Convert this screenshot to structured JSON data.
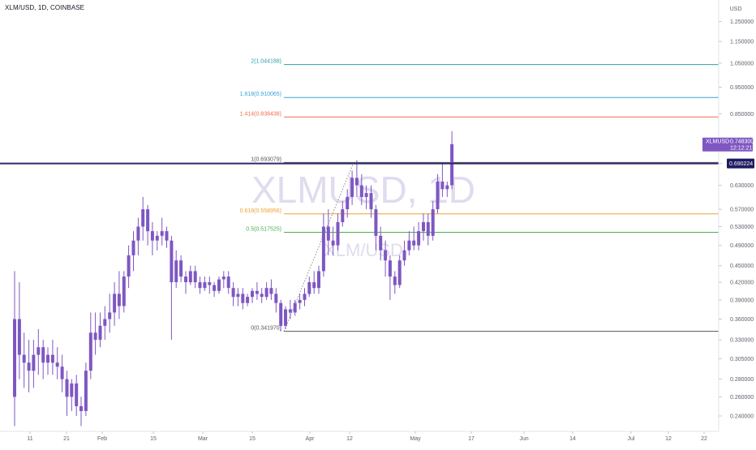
{
  "header": {
    "symbol_title": "XLM/USD, 1D, COINBASE"
  },
  "watermark": {
    "main": "XLMUSD, 1D",
    "sub": "XLM/USD"
  },
  "axis": {
    "currency": "USD"
  },
  "colors": {
    "candle": "#7e57c2",
    "last_price_line": "#2c2a6b",
    "last_price_badge": "#1e1b60",
    "price_tag": "#7e57c2",
    "axis_text": "#5d606b"
  },
  "current_price": {
    "symbol": "XLMUSD",
    "value": "0.748300",
    "countdown": "12:12:21"
  },
  "crosshair_price": {
    "value": "0.690224"
  },
  "chart_data": {
    "type": "candlestick",
    "title": "XLM/USD, 1D, COINBASE",
    "y_axis": {
      "label": "USD",
      "ticks": [
        "0.240000",
        "0.260000",
        "0.280000",
        "0.305000",
        "0.330000",
        "0.360000",
        "0.390000",
        "0.420000",
        "0.450000",
        "0.490000",
        "0.530000",
        "0.570000",
        "0.630000",
        "0.690000",
        "0.760000",
        "0.850000",
        "0.950000",
        "1.050000",
        "1.150000",
        "1.250000",
        "1.350000"
      ],
      "range": [
        0.228,
        1.42
      ],
      "scale": "log"
    },
    "x_axis": {
      "ticks": [
        "11",
        "21",
        "Feb",
        "15",
        "Mar",
        "15",
        "Apr",
        "12",
        "May",
        "17",
        "Jun",
        "14",
        "Jul",
        "12",
        "22"
      ]
    },
    "fib_levels": [
      {
        "ratio": "2",
        "price": 1.044188,
        "label": "2(1.044188)",
        "color": "#2f9fa6"
      },
      {
        "ratio": "1.618",
        "price": 0.910065,
        "label": "1.618(0.910065)",
        "color": "#3aa0d8"
      },
      {
        "ratio": "1.414",
        "price": 0.838438,
        "label": "1.414(0.838438)",
        "color": "#ef6c4c"
      },
      {
        "ratio": "1",
        "price": 0.693079,
        "label": "1(0.693079)",
        "color": "#555555"
      },
      {
        "ratio": "0.618",
        "price": 0.558956,
        "label": "0.618(0.558956)",
        "color": "#f0a030"
      },
      {
        "ratio": "0.5",
        "price": 0.517525,
        "label": "0.5(0.517525)",
        "color": "#4caf50"
      },
      {
        "ratio": "0",
        "price": 0.34197,
        "label": "0(0.341970)",
        "color": "#555555"
      }
    ],
    "candles": [
      {
        "o": 0.26,
        "h": 0.44,
        "c": 0.36,
        "l": 0.23
      },
      {
        "o": 0.36,
        "h": 0.42,
        "c": 0.31,
        "l": 0.28
      },
      {
        "o": 0.31,
        "h": 0.34,
        "c": 0.3,
        "l": 0.27
      },
      {
        "o": 0.3,
        "h": 0.33,
        "c": 0.29,
        "l": 0.265
      },
      {
        "o": 0.29,
        "h": 0.33,
        "c": 0.31,
        "l": 0.27
      },
      {
        "o": 0.31,
        "h": 0.345,
        "c": 0.32,
        "l": 0.285
      },
      {
        "o": 0.32,
        "h": 0.33,
        "c": 0.3,
        "l": 0.28
      },
      {
        "o": 0.3,
        "h": 0.32,
        "c": 0.31,
        "l": 0.285
      },
      {
        "o": 0.31,
        "h": 0.33,
        "c": 0.3,
        "l": 0.285
      },
      {
        "o": 0.3,
        "h": 0.32,
        "c": 0.295,
        "l": 0.28
      },
      {
        "o": 0.295,
        "h": 0.31,
        "c": 0.28,
        "l": 0.265
      },
      {
        "o": 0.28,
        "h": 0.29,
        "c": 0.26,
        "l": 0.24
      },
      {
        "o": 0.26,
        "h": 0.28,
        "c": 0.275,
        "l": 0.245
      },
      {
        "o": 0.275,
        "h": 0.285,
        "c": 0.25,
        "l": 0.24
      },
      {
        "o": 0.25,
        "h": 0.26,
        "c": 0.245,
        "l": 0.23
      },
      {
        "o": 0.245,
        "h": 0.3,
        "c": 0.29,
        "l": 0.24
      },
      {
        "o": 0.29,
        "h": 0.37,
        "c": 0.34,
        "l": 0.28
      },
      {
        "o": 0.34,
        "h": 0.37,
        "c": 0.33,
        "l": 0.31
      },
      {
        "o": 0.33,
        "h": 0.37,
        "c": 0.35,
        "l": 0.32
      },
      {
        "o": 0.35,
        "h": 0.38,
        "c": 0.36,
        "l": 0.33
      },
      {
        "o": 0.36,
        "h": 0.4,
        "c": 0.37,
        "l": 0.34
      },
      {
        "o": 0.37,
        "h": 0.42,
        "c": 0.4,
        "l": 0.35
      },
      {
        "o": 0.4,
        "h": 0.44,
        "c": 0.38,
        "l": 0.36
      },
      {
        "o": 0.38,
        "h": 0.44,
        "c": 0.43,
        "l": 0.37
      },
      {
        "o": 0.43,
        "h": 0.49,
        "c": 0.47,
        "l": 0.41
      },
      {
        "o": 0.47,
        "h": 0.52,
        "c": 0.5,
        "l": 0.44
      },
      {
        "o": 0.5,
        "h": 0.55,
        "c": 0.53,
        "l": 0.47
      },
      {
        "o": 0.53,
        "h": 0.6,
        "c": 0.57,
        "l": 0.5
      },
      {
        "o": 0.57,
        "h": 0.58,
        "c": 0.52,
        "l": 0.49
      },
      {
        "o": 0.52,
        "h": 0.54,
        "c": 0.5,
        "l": 0.47
      },
      {
        "o": 0.5,
        "h": 0.52,
        "c": 0.51,
        "l": 0.48
      },
      {
        "o": 0.51,
        "h": 0.55,
        "c": 0.52,
        "l": 0.49
      },
      {
        "o": 0.52,
        "h": 0.53,
        "c": 0.5,
        "l": 0.485
      },
      {
        "o": 0.5,
        "h": 0.51,
        "c": 0.42,
        "l": 0.33
      },
      {
        "o": 0.42,
        "h": 0.48,
        "c": 0.46,
        "l": 0.41
      },
      {
        "o": 0.46,
        "h": 0.47,
        "c": 0.43,
        "l": 0.42
      },
      {
        "o": 0.43,
        "h": 0.44,
        "c": 0.42,
        "l": 0.4
      },
      {
        "o": 0.42,
        "h": 0.45,
        "c": 0.44,
        "l": 0.415
      },
      {
        "o": 0.44,
        "h": 0.45,
        "c": 0.42,
        "l": 0.41
      },
      {
        "o": 0.42,
        "h": 0.43,
        "c": 0.41,
        "l": 0.4
      },
      {
        "o": 0.41,
        "h": 0.43,
        "c": 0.42,
        "l": 0.405
      },
      {
        "o": 0.42,
        "h": 0.43,
        "c": 0.415,
        "l": 0.4
      },
      {
        "o": 0.415,
        "h": 0.42,
        "c": 0.405,
        "l": 0.395
      },
      {
        "o": 0.405,
        "h": 0.43,
        "c": 0.425,
        "l": 0.4
      },
      {
        "o": 0.425,
        "h": 0.44,
        "c": 0.43,
        "l": 0.41
      },
      {
        "o": 0.43,
        "h": 0.44,
        "c": 0.41,
        "l": 0.4
      },
      {
        "o": 0.41,
        "h": 0.42,
        "c": 0.395,
        "l": 0.38
      },
      {
        "o": 0.395,
        "h": 0.41,
        "c": 0.4,
        "l": 0.38
      },
      {
        "o": 0.4,
        "h": 0.41,
        "c": 0.385,
        "l": 0.375
      },
      {
        "o": 0.385,
        "h": 0.4,
        "c": 0.395,
        "l": 0.38
      },
      {
        "o": 0.395,
        "h": 0.41,
        "c": 0.405,
        "l": 0.385
      },
      {
        "o": 0.405,
        "h": 0.42,
        "c": 0.4,
        "l": 0.39
      },
      {
        "o": 0.4,
        "h": 0.41,
        "c": 0.395,
        "l": 0.385
      },
      {
        "o": 0.395,
        "h": 0.42,
        "c": 0.41,
        "l": 0.39
      },
      {
        "o": 0.41,
        "h": 0.425,
        "c": 0.4,
        "l": 0.39
      },
      {
        "o": 0.4,
        "h": 0.41,
        "c": 0.385,
        "l": 0.37
      },
      {
        "o": 0.385,
        "h": 0.39,
        "c": 0.35,
        "l": 0.342
      },
      {
        "o": 0.35,
        "h": 0.38,
        "c": 0.375,
        "l": 0.345
      },
      {
        "o": 0.375,
        "h": 0.39,
        "c": 0.37,
        "l": 0.36
      },
      {
        "o": 0.37,
        "h": 0.39,
        "c": 0.385,
        "l": 0.365
      },
      {
        "o": 0.385,
        "h": 0.4,
        "c": 0.39,
        "l": 0.375
      },
      {
        "o": 0.39,
        "h": 0.41,
        "c": 0.4,
        "l": 0.38
      },
      {
        "o": 0.4,
        "h": 0.43,
        "c": 0.42,
        "l": 0.395
      },
      {
        "o": 0.42,
        "h": 0.44,
        "c": 0.41,
        "l": 0.4
      },
      {
        "o": 0.41,
        "h": 0.45,
        "c": 0.44,
        "l": 0.4
      },
      {
        "o": 0.44,
        "h": 0.56,
        "c": 0.53,
        "l": 0.43
      },
      {
        "o": 0.53,
        "h": 0.57,
        "c": 0.5,
        "l": 0.47
      },
      {
        "o": 0.5,
        "h": 0.53,
        "c": 0.49,
        "l": 0.47
      },
      {
        "o": 0.49,
        "h": 0.56,
        "c": 0.54,
        "l": 0.48
      },
      {
        "o": 0.54,
        "h": 0.59,
        "c": 0.57,
        "l": 0.53
      },
      {
        "o": 0.57,
        "h": 0.62,
        "c": 0.6,
        "l": 0.55
      },
      {
        "o": 0.6,
        "h": 0.67,
        "c": 0.65,
        "l": 0.58
      },
      {
        "o": 0.65,
        "h": 0.7,
        "c": 0.63,
        "l": 0.6
      },
      {
        "o": 0.63,
        "h": 0.66,
        "c": 0.6,
        "l": 0.58
      },
      {
        "o": 0.6,
        "h": 0.63,
        "c": 0.61,
        "l": 0.57
      },
      {
        "o": 0.61,
        "h": 0.63,
        "c": 0.57,
        "l": 0.55
      },
      {
        "o": 0.57,
        "h": 0.58,
        "c": 0.51,
        "l": 0.48
      },
      {
        "o": 0.51,
        "h": 0.53,
        "c": 0.48,
        "l": 0.46
      },
      {
        "o": 0.48,
        "h": 0.5,
        "c": 0.46,
        "l": 0.43
      },
      {
        "o": 0.46,
        "h": 0.47,
        "c": 0.43,
        "l": 0.39
      },
      {
        "o": 0.43,
        "h": 0.44,
        "c": 0.415,
        "l": 0.4
      },
      {
        "o": 0.415,
        "h": 0.47,
        "c": 0.46,
        "l": 0.41
      },
      {
        "o": 0.46,
        "h": 0.5,
        "c": 0.48,
        "l": 0.45
      },
      {
        "o": 0.48,
        "h": 0.52,
        "c": 0.5,
        "l": 0.47
      },
      {
        "o": 0.5,
        "h": 0.53,
        "c": 0.49,
        "l": 0.48
      },
      {
        "o": 0.49,
        "h": 0.54,
        "c": 0.52,
        "l": 0.48
      },
      {
        "o": 0.52,
        "h": 0.56,
        "c": 0.54,
        "l": 0.5
      },
      {
        "o": 0.54,
        "h": 0.56,
        "c": 0.51,
        "l": 0.49
      },
      {
        "o": 0.51,
        "h": 0.59,
        "c": 0.57,
        "l": 0.5
      },
      {
        "o": 0.57,
        "h": 0.66,
        "c": 0.64,
        "l": 0.56
      },
      {
        "o": 0.64,
        "h": 0.69,
        "c": 0.62,
        "l": 0.6
      },
      {
        "o": 0.62,
        "h": 0.64,
        "c": 0.63,
        "l": 0.6
      },
      {
        "o": 0.63,
        "h": 0.79,
        "c": 0.7483,
        "l": 0.62
      }
    ]
  }
}
